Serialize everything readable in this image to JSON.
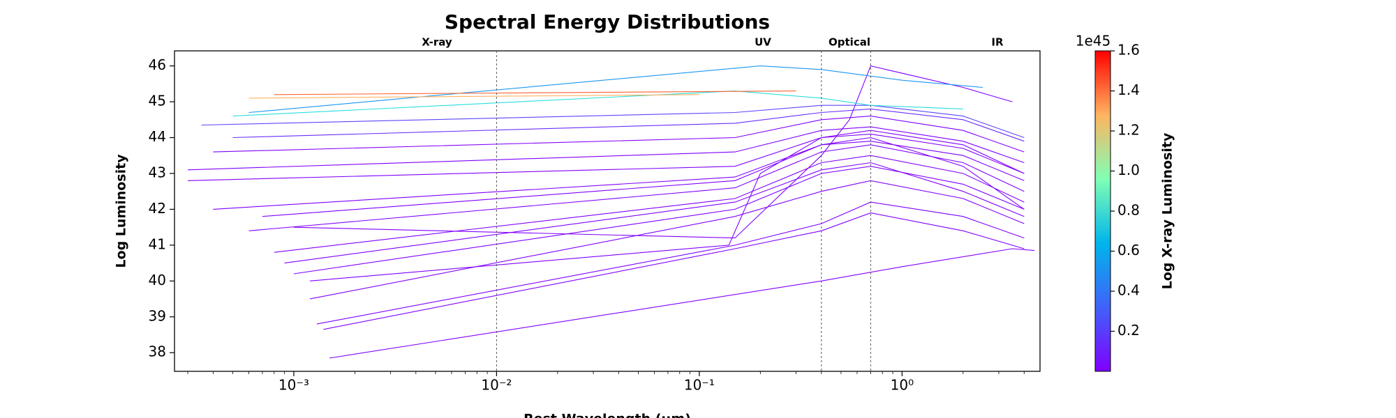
{
  "chart_data": {
    "type": "line",
    "title": "Spectral Energy Distributions",
    "x_label": "Rest Wavelength (μm)",
    "y_label": "Log Luminosity",
    "xscale": "log",
    "xlim": [
      0.000258,
      4.79
    ],
    "ylim": [
      37.48,
      46.42
    ],
    "xticks": [
      {
        "value": 0.001,
        "label": "10⁻³"
      },
      {
        "value": 0.01,
        "label": "10⁻²"
      },
      {
        "value": 0.1,
        "label": "10⁻¹"
      },
      {
        "value": 1,
        "label": "10⁰"
      }
    ],
    "yticks": [
      38,
      39,
      40,
      41,
      42,
      43,
      44,
      45,
      46
    ],
    "vlines": [
      0.01,
      0.4,
      0.7
    ],
    "annotations": [
      "X-ray",
      "UV",
      "Optical",
      "IR"
    ],
    "colorbar": {
      "label": "Log X-ray Luminosity",
      "offset_label": "1e45",
      "colormap": "rainbow",
      "lim": [
        0,
        1.6
      ],
      "ticks": [
        0.2,
        0.4,
        0.6,
        0.8,
        {
          "value": 1,
          "label": "1.0"
        },
        1.2,
        1.4,
        1.6
      ]
    },
    "series": [
      {
        "color": "#8000ff",
        "x": [
          0.0015,
          0.4,
          1.0,
          3.5,
          4.5
        ],
        "values": [
          37.85,
          40.0,
          40.4,
          40.9,
          40.85
        ]
      },
      {
        "color": "#8000ff",
        "x": [
          0.0013,
          0.15,
          0.4,
          0.7,
          2,
          4
        ],
        "values": [
          38.8,
          41.0,
          41.6,
          42.2,
          41.8,
          41.2
        ]
      },
      {
        "color": "#8000ff",
        "x": [
          0.0014,
          0.15,
          0.4,
          0.7,
          2,
          4
        ],
        "values": [
          38.65,
          40.9,
          41.4,
          41.9,
          41.4,
          40.9
        ]
      },
      {
        "color": "#8000ff",
        "x": [
          0.0012,
          0.15,
          0.4,
          0.7,
          2,
          4
        ],
        "values": [
          39.5,
          41.8,
          42.5,
          42.8,
          42.3,
          41.6
        ]
      },
      {
        "color": "#8000ff",
        "x": [
          0.0012,
          0.14,
          0.2,
          0.4,
          0.7,
          2,
          4
        ],
        "values": [
          40.0,
          41.0,
          43.0,
          44.0,
          44.2,
          43.8,
          43.0
        ]
      },
      {
        "color": "#8000ff",
        "x": [
          0.001,
          0.15,
          0.4,
          0.7,
          2,
          4
        ],
        "values": [
          40.2,
          42.0,
          43.0,
          43.2,
          42.7,
          42.0
        ]
      },
      {
        "color": "#8000ff",
        "x": [
          0.0009,
          0.15,
          0.4,
          0.7,
          2,
          4
        ],
        "values": [
          40.5,
          42.2,
          43.1,
          43.3,
          42.5,
          41.8
        ]
      },
      {
        "color": "#8000ff",
        "x": [
          0.0008,
          0.15,
          0.4,
          0.7,
          2,
          4
        ],
        "values": [
          40.8,
          42.3,
          43.3,
          43.5,
          43.0,
          42.2
        ]
      },
      {
        "color": "#8000ff",
        "x": [
          0.0007,
          0.15,
          0.4,
          0.7,
          2,
          4
        ],
        "values": [
          41.8,
          42.8,
          43.8,
          44.0,
          43.2,
          42.0
        ]
      },
      {
        "color": "#8000ff",
        "x": [
          0.0006,
          0.15,
          0.4,
          0.7,
          2,
          4
        ],
        "values": [
          41.4,
          42.6,
          43.6,
          43.8,
          43.3,
          42.5
        ]
      },
      {
        "color": "#8000ff",
        "x": [
          0.0004,
          0.15,
          0.4,
          0.7,
          2,
          4
        ],
        "values": [
          42.0,
          42.9,
          43.8,
          43.9,
          43.5,
          42.8
        ]
      },
      {
        "color": "#8000ff",
        "x": [
          0.0003,
          0.15,
          0.4,
          0.7,
          2,
          4
        ],
        "values": [
          42.8,
          43.2,
          44.0,
          44.1,
          43.7,
          43.0
        ]
      },
      {
        "color": "#8000ff",
        "x": [
          0.0003,
          0.15,
          0.4,
          0.7,
          2,
          4
        ],
        "values": [
          43.1,
          43.6,
          44.2,
          44.3,
          43.9,
          43.3
        ]
      },
      {
        "color": "#8000ff",
        "x": [
          0.0004,
          0.15,
          0.4,
          0.7,
          2,
          4
        ],
        "values": [
          43.6,
          44.0,
          44.5,
          44.6,
          44.2,
          43.6
        ]
      },
      {
        "color": "#8000ff",
        "x": [
          0.001,
          0.15,
          0.4,
          0.55,
          0.7,
          2,
          3.5
        ],
        "values": [
          41.5,
          41.2,
          43.5,
          44.5,
          46.0,
          45.4,
          45.0
        ]
      },
      {
        "color": "#6a2dfe",
        "x": [
          0.0005,
          0.15,
          0.4,
          0.7,
          2,
          4
        ],
        "values": [
          44.0,
          44.4,
          44.7,
          44.8,
          44.5,
          43.9
        ]
      },
      {
        "color": "#5a45fd",
        "x": [
          0.00035,
          0.15,
          0.4,
          0.7,
          2,
          4
        ],
        "values": [
          44.35,
          44.7,
          44.9,
          44.9,
          44.6,
          44.0
        ]
      },
      {
        "color": "#2adddd",
        "x": [
          0.0005,
          0.15,
          0.4,
          0.7,
          2
        ],
        "values": [
          44.6,
          45.3,
          45.1,
          44.9,
          44.8
        ]
      },
      {
        "color": "#1996f3",
        "x": [
          0.0006,
          0.2,
          0.4,
          1,
          2.5
        ],
        "values": [
          44.7,
          46.0,
          45.9,
          45.6,
          45.4
        ]
      },
      {
        "color": "#ffb360",
        "x": [
          0.0006,
          0.1
        ],
        "values": [
          45.1,
          45.2
        ]
      },
      {
        "color": "#ff5f30",
        "x": [
          0.0008,
          0.3
        ],
        "values": [
          45.2,
          45.3
        ]
      }
    ]
  }
}
